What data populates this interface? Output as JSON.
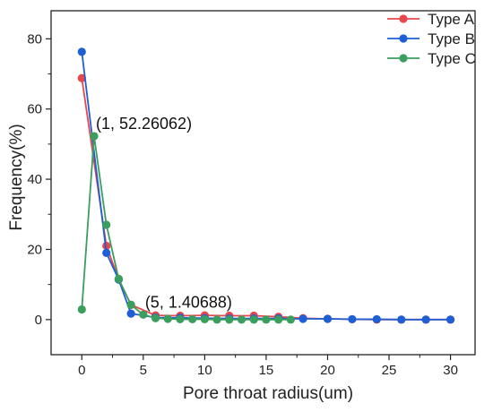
{
  "chart_data": {
    "type": "line",
    "title": "",
    "xlabel": "Pore throat radius(um)",
    "ylabel": "Frequency(%)",
    "xlim": [
      -2.5,
      32
    ],
    "ylim": [
      -10,
      88
    ],
    "xticks": [
      0,
      5,
      10,
      15,
      20,
      25,
      30
    ],
    "yticks": [
      0,
      20,
      40,
      60,
      80
    ],
    "grid": false,
    "legend_position": "top-right",
    "series": [
      {
        "name": "Type A",
        "color": "#e8474c",
        "points": [
          [
            0,
            68.8
          ],
          [
            2,
            21
          ],
          [
            3,
            11.5
          ],
          [
            4,
            4.2
          ],
          [
            6,
            1.2
          ],
          [
            8,
            1.1
          ],
          [
            10,
            1.2
          ],
          [
            12,
            1.1
          ],
          [
            14,
            1.1
          ],
          [
            16,
            0.8
          ],
          [
            18,
            0.4
          ],
          [
            20,
            0.2
          ],
          [
            22,
            0.1
          ],
          [
            24,
            0
          ],
          [
            26,
            0
          ],
          [
            28,
            0
          ],
          [
            30,
            0
          ]
        ]
      },
      {
        "name": "Type B",
        "color": "#1f5fd6",
        "points": [
          [
            0,
            76.3
          ],
          [
            2,
            19
          ],
          [
            3,
            11.4
          ],
          [
            4,
            1.7
          ],
          [
            6,
            0.6
          ],
          [
            8,
            0.5
          ],
          [
            10,
            0.4
          ],
          [
            12,
            0.3
          ],
          [
            14,
            0.3
          ],
          [
            16,
            0.3
          ],
          [
            18,
            0.2
          ],
          [
            20,
            0.2
          ],
          [
            22,
            0.1
          ],
          [
            24,
            0.1
          ],
          [
            26,
            0
          ],
          [
            28,
            0
          ],
          [
            30,
            0
          ]
        ]
      },
      {
        "name": "Type C",
        "color": "#3a9e5f",
        "points": [
          [
            0,
            2.9
          ],
          [
            1,
            52.26062
          ],
          [
            2,
            27
          ],
          [
            3,
            11.6
          ],
          [
            4,
            4.2
          ],
          [
            5,
            1.40688
          ],
          [
            6,
            0.4
          ],
          [
            7,
            0.2
          ],
          [
            8,
            0.1
          ],
          [
            9,
            0.1
          ],
          [
            10,
            0.1
          ],
          [
            11,
            0
          ],
          [
            12,
            0
          ],
          [
            13,
            0
          ],
          [
            14,
            0
          ],
          [
            15,
            0
          ],
          [
            16,
            0
          ],
          [
            17,
            0
          ]
        ]
      }
    ],
    "annotations": [
      {
        "text": "(1, 52.26062)",
        "x": 1,
        "y": 52.26062
      },
      {
        "text": "(5, 1.40688)",
        "x": 5,
        "y": 1.40688
      }
    ]
  }
}
